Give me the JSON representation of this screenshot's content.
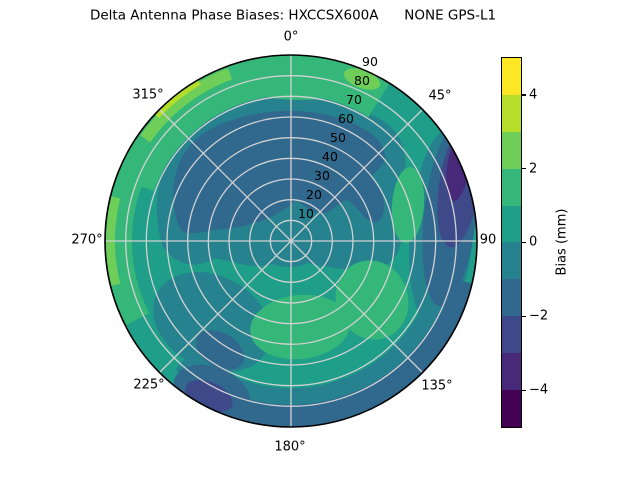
{
  "title": "Delta Antenna Phase Biases: HXCCSX600A      NONE GPS-L1",
  "polar": {
    "theta_labels": [
      "0°",
      "45°",
      "90",
      "135°",
      "180°",
      "225°",
      "270°",
      "315°"
    ],
    "r_labels": [
      "10",
      "20",
      "30",
      "40",
      "50",
      "60",
      "70",
      "80",
      "90"
    ]
  },
  "colorbar": {
    "label": "Bias (mm)",
    "tick_labels": [
      "4",
      "2",
      "0",
      "−2",
      "−4"
    ],
    "colors_top_to_bottom": [
      "#fde725",
      "#b5de2b",
      "#6ece58",
      "#35b779",
      "#1f9e89",
      "#26828e",
      "#31688e",
      "#3e4989",
      "#482878",
      "#440154"
    ]
  },
  "chart_data": {
    "type": "heatmap",
    "projection": "polar",
    "title": "Delta Antenna Phase Biases: HXCCSX600A      NONE GPS-L1",
    "antenna": "HXCCSX600A",
    "radome": "NONE",
    "signal": "GPS-L1",
    "angular_ticks_deg": [
      0,
      45,
      90,
      135,
      180,
      225,
      270,
      315
    ],
    "angular_zero_location": "top",
    "angular_direction": "clockwise",
    "radial_ticks": [
      10,
      20,
      30,
      40,
      50,
      60,
      70,
      80,
      90
    ],
    "radial_range": [
      0,
      90
    ],
    "radial_label_angle_deg": 22.5,
    "grid": true,
    "colormap": "viridis",
    "contour_levels_mm": [
      -5,
      -4,
      -3,
      -2,
      -1,
      0,
      1,
      2,
      3,
      4,
      5
    ],
    "colorbar_label": "Bias (mm)",
    "colorbar_ticks_mm": [
      4,
      2,
      0,
      -2,
      -4
    ],
    "color_range_mm": [
      -5,
      5
    ],
    "notable_regions": [
      {
        "azimuth_deg": 0,
        "radius": 85,
        "bias_mm": 1.5,
        "note": "green band along top rim"
      },
      {
        "azimuth_deg": 332,
        "radius": 88,
        "bias_mm": 3.5,
        "note": "bright yellow-green sliver at NW rim"
      },
      {
        "azimuth_deg": 270,
        "radius": 85,
        "bias_mm": 2.5,
        "note": "green band along left rim"
      },
      {
        "azimuth_deg": 340,
        "radius": 45,
        "bias_mm": -1.5,
        "note": "large dark blue blob upper-left of center"
      },
      {
        "azimuth_deg": 15,
        "radius": 50,
        "bias_mm": -1.5,
        "note": "dark blue blob extends over top of center"
      },
      {
        "azimuth_deg": 65,
        "radius": 88,
        "bias_mm": -3.5,
        "note": "darkest purple band at right rim"
      },
      {
        "azimuth_deg": 78,
        "radius": 60,
        "bias_mm": 1.5,
        "note": "green patch right of center"
      },
      {
        "azimuth_deg": 170,
        "radius": 42,
        "bias_mm": 1.5,
        "note": "green blob below center"
      },
      {
        "azimuth_deg": 128,
        "radius": 82,
        "bias_mm": -1.5,
        "note": "blue band along lower-right rim"
      },
      {
        "azimuth_deg": 207,
        "radius": 88,
        "bias_mm": -2.5,
        "note": "dark blue patch at lower-left rim"
      },
      {
        "azimuth_deg": 0,
        "radius": 0,
        "bias_mm": -0.5,
        "note": "teal zone at plot center"
      }
    ]
  }
}
